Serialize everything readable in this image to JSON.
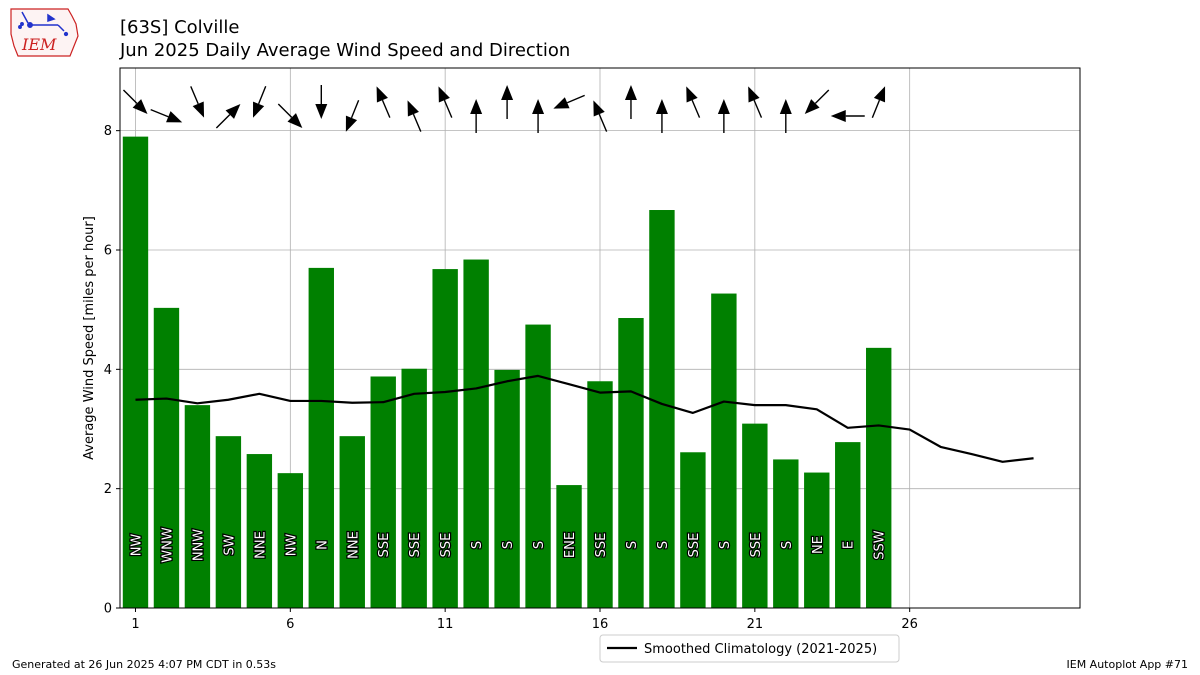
{
  "header": {
    "station": "[63S] Colville",
    "subtitle": "Jun 2025 Daily Average Wind Speed and Direction",
    "logo_text": "IEM"
  },
  "footer": {
    "generated": "Generated at 26 Jun 2025 4:07 PM CDT in 0.53s",
    "app": "IEM Autoplot App #71"
  },
  "colors": {
    "bar": "#008000",
    "climatology": "#000000",
    "grid": "#b0b0b0",
    "logo": "#cc2222"
  },
  "chart_data": {
    "type": "bar",
    "ylabel": "Average Wind Speed [miles per hour]",
    "xlabel": "",
    "xlim": [
      0.5,
      31.5
    ],
    "ylim": [
      0,
      9.05
    ],
    "xticks": [
      1,
      6,
      11,
      16,
      21,
      26
    ],
    "yticks": [
      0,
      2,
      4,
      6,
      8
    ],
    "grid": true,
    "legend_position": "bottom-center",
    "days": [
      1,
      2,
      3,
      4,
      5,
      6,
      7,
      8,
      9,
      10,
      11,
      12,
      13,
      14,
      15,
      16,
      17,
      18,
      19,
      20,
      21,
      22,
      23,
      24,
      25
    ],
    "speed": [
      7.9,
      5.03,
      3.4,
      2.88,
      2.58,
      2.26,
      5.7,
      2.88,
      3.88,
      4.01,
      5.68,
      5.84,
      3.99,
      4.75,
      2.06,
      3.8,
      4.86,
      6.67,
      2.61,
      5.27,
      3.09,
      2.49,
      2.27,
      2.78,
      4.36
    ],
    "direction_labels": [
      "NW",
      "WNW",
      "NNW",
      "SW",
      "NNE",
      "NW",
      "N",
      "NNE",
      "SSE",
      "SSE",
      "SSE",
      "S",
      "S",
      "S",
      "ENE",
      "SSE",
      "S",
      "S",
      "SSE",
      "S",
      "SSE",
      "S",
      "NE",
      "E",
      "SSW"
    ],
    "direction_degrees": [
      315,
      292,
      337,
      225,
      22,
      315,
      0,
      22,
      157,
      157,
      157,
      180,
      180,
      180,
      67,
      157,
      180,
      180,
      157,
      180,
      157,
      180,
      45,
      90,
      202
    ],
    "series": [
      {
        "name": "Smoothed Climatology (2021-2025)",
        "x": [
          1,
          2,
          3,
          4,
          5,
          6,
          7,
          8,
          9,
          10,
          11,
          12,
          13,
          14,
          15,
          16,
          17,
          18,
          19,
          20,
          21,
          22,
          23,
          24,
          25,
          26,
          27,
          28,
          29,
          30
        ],
        "values": [
          3.49,
          3.51,
          3.43,
          3.49,
          3.59,
          3.47,
          3.47,
          3.44,
          3.45,
          3.59,
          3.62,
          3.68,
          3.8,
          3.89,
          3.75,
          3.61,
          3.63,
          3.42,
          3.27,
          3.46,
          3.4,
          3.4,
          3.33,
          3.02,
          3.06,
          2.99,
          2.7,
          2.58,
          2.45,
          2.51
        ]
      }
    ]
  }
}
